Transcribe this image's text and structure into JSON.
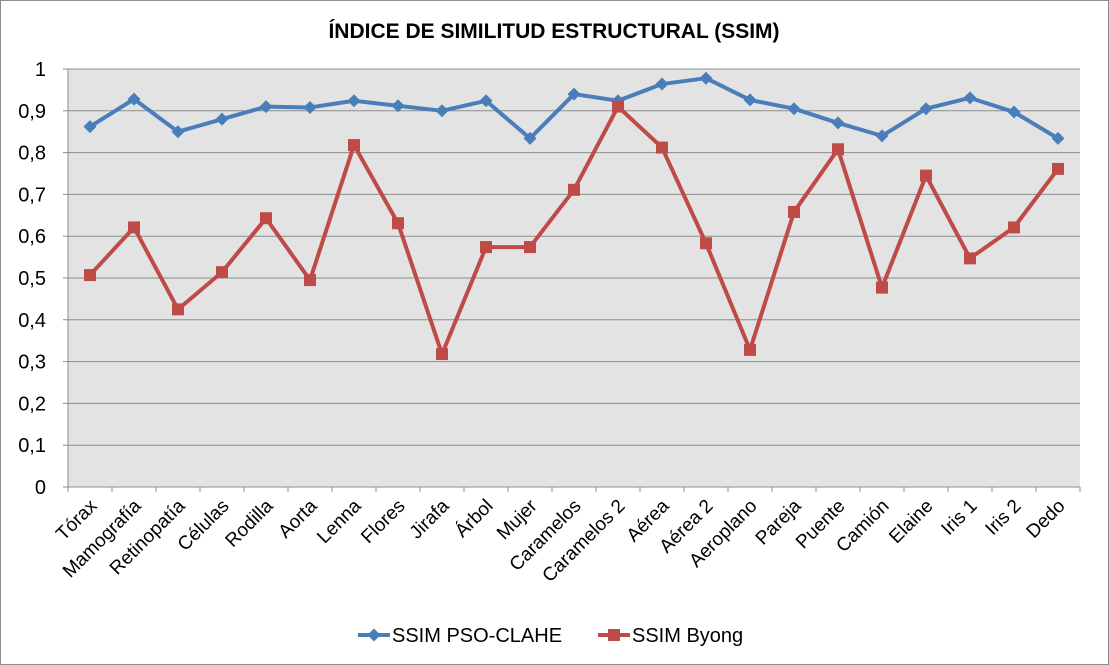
{
  "chart_data": {
    "type": "line",
    "title": "ÍNDICE DE SIMILITUD ESTRUCTURAL (SSIM)",
    "xlabel": "",
    "ylabel": "",
    "ylim": [
      0,
      1
    ],
    "yticks": [
      "0",
      "0,1",
      "0,2",
      "0,3",
      "0,4",
      "0,5",
      "0,6",
      "0,7",
      "0,8",
      "0,9",
      "1"
    ],
    "ytick_values": [
      0,
      0.1,
      0.2,
      0.3,
      0.4,
      0.5,
      0.6,
      0.7,
      0.8,
      0.9,
      1
    ],
    "grid": true,
    "legend_position": "bottom",
    "categories": [
      "Tórax",
      "Mamografía",
      "Retinopatía",
      "Células",
      "Rodilla",
      "Aorta",
      "Lenna",
      "Flores",
      "Jirafa",
      "Árbol",
      "Mujer",
      "Caramelos",
      "Caramelos 2",
      "Aérea",
      "Aérea 2",
      "Aeroplano",
      "Pareja",
      "Puente",
      "Camión",
      "Elaine",
      "Iris 1",
      "Iris 2",
      "Dedo"
    ],
    "series": [
      {
        "name": "SSIM PSO-CLAHE",
        "color": "#4a7ebb",
        "marker": "diamond",
        "values": [
          0.862,
          0.928,
          0.85,
          0.88,
          0.91,
          0.908,
          0.924,
          0.912,
          0.9,
          0.924,
          0.834,
          0.94,
          0.924,
          0.964,
          0.978,
          0.926,
          0.905,
          0.871,
          0.84,
          0.905,
          0.931,
          0.897,
          0.834
        ]
      },
      {
        "name": "SSIM Byong",
        "color": "#be4b48",
        "marker": "square",
        "values": [
          0.507,
          0.621,
          0.425,
          0.514,
          0.643,
          0.495,
          0.818,
          0.631,
          0.318,
          0.574,
          0.574,
          0.711,
          0.91,
          0.812,
          0.583,
          0.328,
          0.658,
          0.808,
          0.477,
          0.745,
          0.547,
          0.621,
          0.761
        ]
      }
    ]
  }
}
